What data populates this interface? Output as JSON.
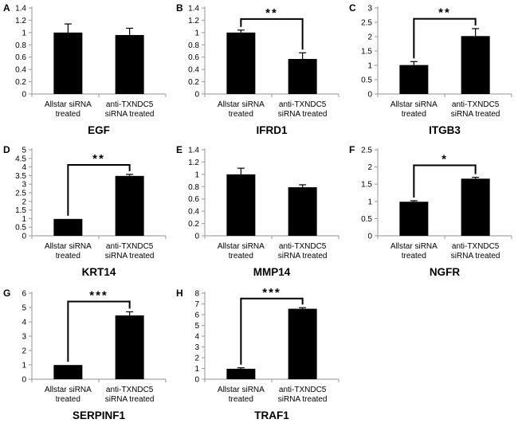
{
  "figure": {
    "description": "Eight-panel qPCR bar chart figure comparing siRNA treatments",
    "bar_color": "#000000",
    "axis_color": "#a6a6a6",
    "text_color": "#000000",
    "bracket_color": "#000000",
    "category_lines": [
      [
        "Allstar siRNA",
        "treated"
      ],
      [
        "anti-TXNDC5",
        "siRNA treated"
      ]
    ]
  },
  "chart_data": [
    {
      "type": "bar",
      "panel_label": "A",
      "title": "EGF",
      "categories": [
        "Allstar siRNA treated",
        "anti-TXNDC5 siRNA treated"
      ],
      "values": [
        1.0,
        0.96
      ],
      "errors": [
        0.14,
        0.11
      ],
      "ylim": [
        0,
        1.4
      ],
      "yticks": [
        "0",
        "0.2",
        "0.4",
        "0.6",
        "0.8",
        "1",
        "1.2",
        "1.4"
      ],
      "grid": false,
      "legend": null,
      "significance": null
    },
    {
      "type": "bar",
      "panel_label": "B",
      "title": "IFRD1",
      "categories": [
        "Allstar siRNA treated",
        "anti-TXNDC5 siRNA treated"
      ],
      "values": [
        1.0,
        0.57
      ],
      "errors": [
        0.04,
        0.1
      ],
      "ylim": [
        0,
        1.4
      ],
      "yticks": [
        "0",
        "0.2",
        "0.4",
        "0.6",
        "0.8",
        "1",
        "1.2",
        "1.4"
      ],
      "grid": false,
      "legend": null,
      "significance": {
        "label": "**",
        "y": 1.22
      }
    },
    {
      "type": "bar",
      "panel_label": "C",
      "title": "ITGB3",
      "categories": [
        "Allstar siRNA treated",
        "anti-TXNDC5 siRNA treated"
      ],
      "values": [
        1.01,
        2.02
      ],
      "errors": [
        0.12,
        0.26
      ],
      "ylim": [
        0,
        3
      ],
      "yticks": [
        "0",
        "0.5",
        "1",
        "1.5",
        "2",
        "2.5",
        "3"
      ],
      "grid": false,
      "legend": null,
      "significance": {
        "label": "**",
        "y": 2.62
      }
    },
    {
      "type": "bar",
      "panel_label": "D",
      "title": "KRT14",
      "categories": [
        "Allstar siRNA treated",
        "anti-TXNDC5 siRNA treated"
      ],
      "values": [
        0.98,
        3.48
      ],
      "errors": [
        0,
        0.09
      ],
      "ylim": [
        0,
        5
      ],
      "yticks": [
        "0",
        "0.5",
        "1",
        "1.5",
        "2",
        "2.5",
        "3",
        "3.5",
        "4",
        "4.5",
        "5"
      ],
      "grid": false,
      "legend": null,
      "significance": {
        "label": "**",
        "y": 4.12
      }
    },
    {
      "type": "bar",
      "panel_label": "E",
      "title": "MMP14",
      "categories": [
        "Allstar siRNA treated",
        "anti-TXNDC5 siRNA treated"
      ],
      "values": [
        1.0,
        0.79
      ],
      "errors": [
        0.1,
        0.04
      ],
      "ylim": [
        0,
        1.4
      ],
      "yticks": [
        "0",
        "0.2",
        "0.4",
        "0.6",
        "0.8",
        "1",
        "1.2",
        "1.4"
      ],
      "grid": false,
      "legend": null,
      "significance": null
    },
    {
      "type": "bar",
      "panel_label": "F",
      "title": "NGFR",
      "categories": [
        "Allstar siRNA treated",
        "anti-TXNDC5 siRNA treated"
      ],
      "values": [
        0.99,
        1.66
      ],
      "errors": [
        0.03,
        0.04
      ],
      "ylim": [
        0,
        2.5
      ],
      "yticks": [
        "0",
        "0.5",
        "1",
        "1.5",
        "2",
        "2.5"
      ],
      "grid": false,
      "legend": null,
      "significance": {
        "label": "*",
        "y": 2.05
      }
    },
    {
      "type": "bar",
      "panel_label": "G",
      "title": "SERPINF1",
      "categories": [
        "Allstar siRNA treated",
        "anti-TXNDC5 siRNA treated"
      ],
      "values": [
        0.99,
        4.45
      ],
      "errors": [
        0,
        0.25
      ],
      "ylim": [
        0,
        6
      ],
      "yticks": [
        "0",
        "1",
        "2",
        "3",
        "4",
        "5",
        "6"
      ],
      "grid": false,
      "legend": null,
      "significance": {
        "label": "***",
        "y": 5.42
      }
    },
    {
      "type": "bar",
      "panel_label": "H",
      "title": "TRAF1",
      "categories": [
        "Allstar siRNA treated",
        "anti-TXNDC5 siRNA treated"
      ],
      "values": [
        0.97,
        6.55
      ],
      "errors": [
        0.09,
        0.1
      ],
      "ylim": [
        0,
        8
      ],
      "yticks": [
        "0",
        "1",
        "2",
        "3",
        "4",
        "5",
        "6",
        "7",
        "8"
      ],
      "grid": false,
      "legend": null,
      "significance": {
        "label": "***",
        "y": 7.5
      }
    }
  ]
}
